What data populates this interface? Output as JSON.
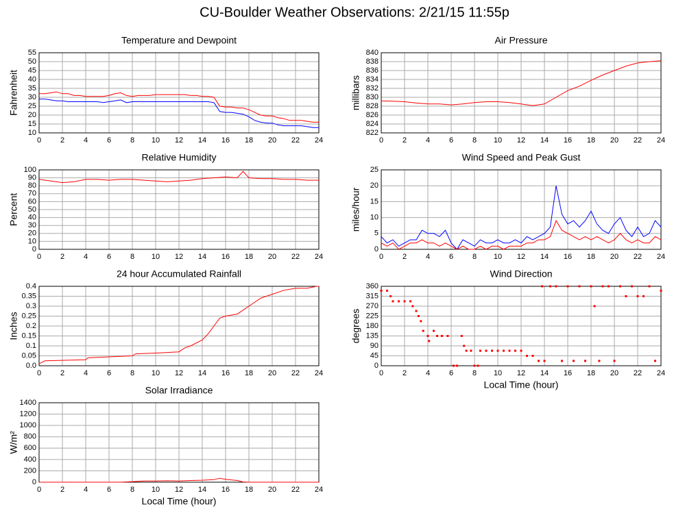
{
  "title": "CU-Boulder Weather Observations: 2/21/15 11:55p",
  "chart_data": [
    {
      "type": "line",
      "title": "Temperature and Dewpoint",
      "y_label": "Fahrenheit",
      "x": [
        0,
        0.5,
        1,
        1.5,
        2,
        2.5,
        3,
        3.5,
        4,
        4.5,
        5,
        5.5,
        6,
        6.5,
        7,
        7.5,
        8,
        8.5,
        9,
        9.5,
        10,
        10.5,
        11,
        11.5,
        12,
        12.5,
        13,
        13.5,
        14,
        14.5,
        15,
        15.5,
        16,
        16.5,
        17,
        17.5,
        18,
        18.5,
        19,
        19.5,
        20,
        20.5,
        21,
        21.5,
        22,
        22.5,
        23,
        23.5,
        24
      ],
      "series": [
        {
          "color": "#ff0000",
          "values": [
            32,
            32,
            32.5,
            33,
            32,
            32,
            31,
            31,
            30.5,
            30.5,
            30.5,
            30.5,
            31,
            32,
            32.5,
            31,
            30.5,
            31,
            31,
            31,
            31.5,
            31.5,
            31.5,
            31.5,
            31.5,
            31.5,
            31,
            31,
            30.5,
            30.5,
            30,
            25,
            24.5,
            24.5,
            24,
            24,
            23,
            21.5,
            20,
            19.5,
            19.5,
            18.5,
            18,
            17,
            17,
            17,
            16.5,
            16,
            16
          ]
        },
        {
          "color": "#0000ff",
          "values": [
            29,
            29,
            28.5,
            28,
            28,
            27.5,
            27.5,
            27.5,
            27.5,
            27.5,
            27.5,
            27,
            27.5,
            28,
            28.5,
            27,
            27.5,
            27.5,
            27.5,
            27.5,
            27.5,
            27.5,
            27.5,
            27.5,
            27.5,
            27.5,
            27.5,
            27.5,
            27.5,
            27.5,
            27,
            22,
            21.5,
            21.5,
            21,
            20.5,
            19,
            17,
            16,
            15.5,
            15.5,
            14.5,
            14,
            14,
            14,
            14,
            13.5,
            13,
            13
          ]
        }
      ],
      "xlim": [
        0,
        24
      ],
      "xticks": [
        0,
        2,
        4,
        6,
        8,
        10,
        12,
        14,
        16,
        18,
        20,
        22,
        24
      ],
      "ylim": [
        10,
        55
      ],
      "yticks": [
        10,
        15,
        20,
        25,
        30,
        35,
        40,
        45,
        50,
        55
      ],
      "grid": true
    },
    {
      "type": "line",
      "title": "Air Pressure",
      "y_label": "millibars",
      "x": [
        0,
        1,
        2,
        3,
        4,
        5,
        6,
        7,
        8,
        9,
        10,
        11,
        12,
        13,
        14,
        15,
        16,
        17,
        18,
        19,
        20,
        21,
        22,
        23,
        24
      ],
      "series": [
        {
          "color": "#ff0000",
          "values": [
            829.2,
            829.1,
            829,
            828.7,
            828.5,
            828.5,
            828.3,
            828.5,
            828.8,
            829,
            829,
            828.8,
            828.5,
            828.1,
            828.5,
            830,
            831.5,
            832.5,
            833.8,
            835,
            836,
            837,
            837.7,
            838,
            838.2
          ]
        }
      ],
      "xlim": [
        0,
        24
      ],
      "xticks": [
        0,
        2,
        4,
        6,
        8,
        10,
        12,
        14,
        16,
        18,
        20,
        22,
        24
      ],
      "ylim": [
        822,
        840
      ],
      "yticks": [
        822,
        824,
        826,
        828,
        830,
        832,
        834,
        836,
        838,
        840
      ],
      "grid": true
    },
    {
      "type": "line",
      "title": "Relative Humidity",
      "y_label": "Percent",
      "x": [
        0,
        1,
        2,
        3,
        4,
        5,
        6,
        7,
        8,
        9,
        10,
        11,
        12,
        13,
        14,
        15,
        16,
        17,
        17.5,
        18,
        19,
        20,
        21,
        22,
        23,
        24
      ],
      "series": [
        {
          "color": "#ff0000",
          "values": [
            88,
            86,
            84,
            85,
            88,
            88,
            87,
            88,
            88,
            87,
            86,
            85,
            86,
            87,
            89,
            90,
            91,
            90,
            98,
            90,
            89,
            89,
            88,
            88,
            87,
            87
          ]
        }
      ],
      "xlim": [
        0,
        24
      ],
      "xticks": [
        0,
        2,
        4,
        6,
        8,
        10,
        12,
        14,
        16,
        18,
        20,
        22,
        24
      ],
      "ylim": [
        0,
        100
      ],
      "yticks": [
        0,
        10,
        20,
        30,
        40,
        50,
        60,
        70,
        80,
        90,
        100
      ],
      "grid": true
    },
    {
      "type": "line",
      "title": "Wind Speed and Peak Gust",
      "y_label": "miles/hour",
      "x": [
        0,
        0.5,
        1,
        1.5,
        2,
        2.5,
        3,
        3.5,
        4,
        4.5,
        5,
        5.5,
        6,
        6.5,
        7,
        7.5,
        8,
        8.5,
        9,
        9.5,
        10,
        10.5,
        11,
        11.5,
        12,
        12.5,
        13,
        13.5,
        14,
        14.5,
        15,
        15.5,
        16,
        16.5,
        17,
        17.5,
        18,
        18.5,
        19,
        19.5,
        20,
        20.5,
        21,
        21.5,
        22,
        22.5,
        23,
        23.5,
        24
      ],
      "series": [
        {
          "color": "#0000ff",
          "values": [
            4,
            2,
            3,
            1,
            2,
            3,
            3,
            6,
            5,
            5,
            4,
            6,
            2,
            0,
            3,
            2,
            1,
            3,
            2,
            2,
            3,
            2,
            2,
            3,
            2,
            4,
            3,
            4,
            5,
            7,
            20,
            11,
            8,
            9,
            7,
            9,
            12,
            8,
            6,
            5,
            8,
            10,
            6,
            4,
            7,
            4,
            5,
            9,
            7
          ]
        },
        {
          "color": "#ff0000",
          "values": [
            2,
            1,
            2,
            0,
            1,
            2,
            2,
            3,
            2,
            2,
            1,
            2,
            1,
            0,
            1,
            0,
            0,
            1,
            0,
            1,
            1,
            0,
            1,
            1,
            1,
            2,
            2,
            3,
            3,
            4,
            9,
            6,
            5,
            4,
            3,
            4,
            3,
            4,
            3,
            2,
            3,
            5,
            3,
            2,
            3,
            2,
            2,
            4,
            3
          ]
        }
      ],
      "xlim": [
        0,
        24
      ],
      "xticks": [
        0,
        2,
        4,
        6,
        8,
        10,
        12,
        14,
        16,
        18,
        20,
        22,
        24
      ],
      "ylim": [
        0,
        25
      ],
      "yticks": [
        0,
        5,
        10,
        15,
        20,
        25
      ],
      "grid": true
    },
    {
      "type": "line",
      "title": "24 hour Accumulated Rainfall",
      "y_label": "Inches",
      "x": [
        0,
        0.5,
        4,
        4.2,
        8,
        8.3,
        10.5,
        12,
        12.5,
        13,
        14,
        14.5,
        15,
        15.5,
        16,
        17,
        17.5,
        18,
        19,
        20,
        21,
        22,
        23,
        23.8,
        24
      ],
      "series": [
        {
          "color": "#ff0000",
          "values": [
            0.01,
            0.025,
            0.03,
            0.04,
            0.05,
            0.06,
            0.065,
            0.07,
            0.09,
            0.1,
            0.13,
            0.16,
            0.2,
            0.24,
            0.25,
            0.26,
            0.28,
            0.3,
            0.34,
            0.36,
            0.38,
            0.39,
            0.39,
            0.4,
            0.4
          ]
        }
      ],
      "xlim": [
        0,
        24
      ],
      "xticks": [
        0,
        2,
        4,
        6,
        8,
        10,
        12,
        14,
        16,
        18,
        20,
        22,
        24
      ],
      "ylim": [
        0,
        0.4
      ],
      "yticks": [
        {
          "value": 0,
          "label": "0.0"
        },
        0.05,
        0.1,
        0.15,
        0.2,
        0.25,
        0.3,
        0.35,
        0.4
      ],
      "grid": true
    },
    {
      "type": "scatter",
      "title": "Wind Direction",
      "y_label": "degrees",
      "x_label": "Local Time (hour)",
      "x": [
        0,
        0.5,
        0.8,
        1,
        1.5,
        2,
        2.5,
        2.7,
        3,
        3.2,
        3.4,
        3.6,
        4,
        4.1,
        4.5,
        4.8,
        5.2,
        5.7,
        6.2,
        6.5,
        6.9,
        7.1,
        7.3,
        7.7,
        8,
        8.3,
        8.5,
        9,
        9.5,
        10,
        10.5,
        11,
        11.5,
        12,
        12.5,
        13,
        13.5,
        13.8,
        14,
        14.5,
        15,
        15.5,
        16,
        16.5,
        17,
        17.5,
        18,
        18.3,
        18.7,
        19,
        19.5,
        20,
        20.5,
        21,
        21.5,
        22,
        22.5,
        23,
        23.5,
        24
      ],
      "series": [
        {
          "color": "#ff0000",
          "values": [
            340,
            340,
            315,
            292,
            292,
            292,
            292,
            270,
            248,
            225,
            202,
            158,
            135,
            112,
            158,
            135,
            135,
            135,
            0,
            0,
            135,
            90,
            68,
            68,
            0,
            0,
            68,
            68,
            68,
            68,
            68,
            68,
            68,
            68,
            45,
            45,
            22,
            360,
            22,
            360,
            360,
            22,
            360,
            22,
            360,
            22,
            360,
            270,
            22,
            360,
            360,
            22,
            360,
            315,
            360,
            315,
            315,
            360,
            22,
            340
          ]
        }
      ],
      "xlim": [
        0,
        24
      ],
      "xticks": [
        0,
        2,
        4,
        6,
        8,
        10,
        12,
        14,
        16,
        18,
        20,
        22,
        24
      ],
      "ylim": [
        0,
        360
      ],
      "yticks": [
        0,
        45,
        90,
        135,
        180,
        225,
        270,
        315,
        360
      ],
      "grid": true
    },
    {
      "type": "line",
      "title": "Solar Irradiance",
      "y_label": "W/m²",
      "x_label": "Local Time (hour)",
      "x": [
        0,
        2,
        4,
        6,
        7,
        8,
        9,
        10,
        11,
        12,
        13,
        14,
        15,
        15.5,
        16,
        17,
        17.5,
        18,
        20,
        22,
        24
      ],
      "series": [
        {
          "color": "#ff0000",
          "values": [
            0,
            0,
            0,
            0,
            0,
            10,
            20,
            20,
            25,
            20,
            30,
            35,
            45,
            70,
            50,
            30,
            5,
            0,
            0,
            0,
            0
          ]
        }
      ],
      "xlim": [
        0,
        24
      ],
      "xticks": [
        0,
        2,
        4,
        6,
        8,
        10,
        12,
        14,
        16,
        18,
        20,
        22,
        24
      ],
      "ylim": [
        0,
        1400
      ],
      "yticks": [
        0,
        200,
        400,
        600,
        800,
        1000,
        1200,
        1400
      ],
      "grid": true
    }
  ]
}
